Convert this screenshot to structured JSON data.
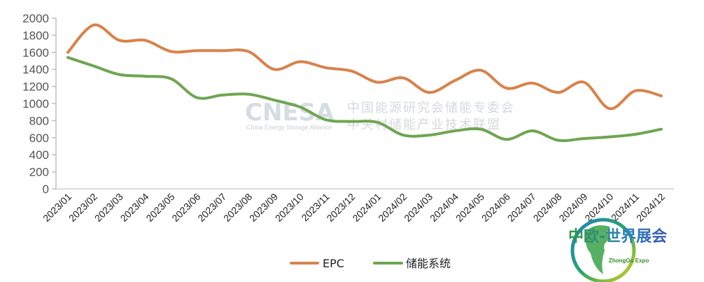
{
  "chart_data": {
    "type": "line",
    "title": "",
    "xlabel": "",
    "ylabel": "",
    "ylim": [
      0,
      2000
    ],
    "yticks": [
      0,
      200,
      400,
      600,
      800,
      1000,
      1200,
      1400,
      1600,
      1800,
      2000
    ],
    "grid": false,
    "legend_position": "bottom",
    "categories": [
      "2023/01",
      "2023/02",
      "2023/03",
      "2023/04",
      "2023/05",
      "2023/06",
      "2023/07",
      "2023/08",
      "2023/09",
      "2023/10",
      "2023/11",
      "2023/12",
      "2024/01",
      "2024/02",
      "2024/03",
      "2024/04",
      "2024/05",
      "2024/06",
      "2024/07",
      "2024/08",
      "2024/09",
      "2024/10",
      "2024/11",
      "2024/12"
    ],
    "series": [
      {
        "name": "EPC",
        "color": "#d9824a",
        "values": [
          1600,
          1920,
          1740,
          1740,
          1610,
          1620,
          1620,
          1610,
          1400,
          1490,
          1420,
          1380,
          1250,
          1300,
          1130,
          1270,
          1390,
          1180,
          1240,
          1130,
          1250,
          940,
          1150,
          1090
        ]
      },
      {
        "name": "储能系统",
        "color": "#6fa551",
        "values": [
          1540,
          1440,
          1340,
          1320,
          1290,
          1070,
          1100,
          1110,
          1040,
          960,
          810,
          790,
          780,
          630,
          630,
          680,
          700,
          580,
          680,
          570,
          590,
          610,
          640,
          700
        ]
      }
    ]
  },
  "legend": {
    "items": [
      {
        "label": "EPC",
        "color": "#d9824a"
      },
      {
        "label": "储能系统",
        "color": "#6fa551"
      }
    ]
  },
  "watermark": {
    "brand": "CNESA",
    "brand_sub": "China Energy Storage Alliance",
    "line1": "中国能源研究会储能专委会",
    "line2": "中关村储能产业技术联盟"
  },
  "logo": {
    "title": "中欧-世界展会",
    "subtitle": "ZhongOu Expo"
  }
}
